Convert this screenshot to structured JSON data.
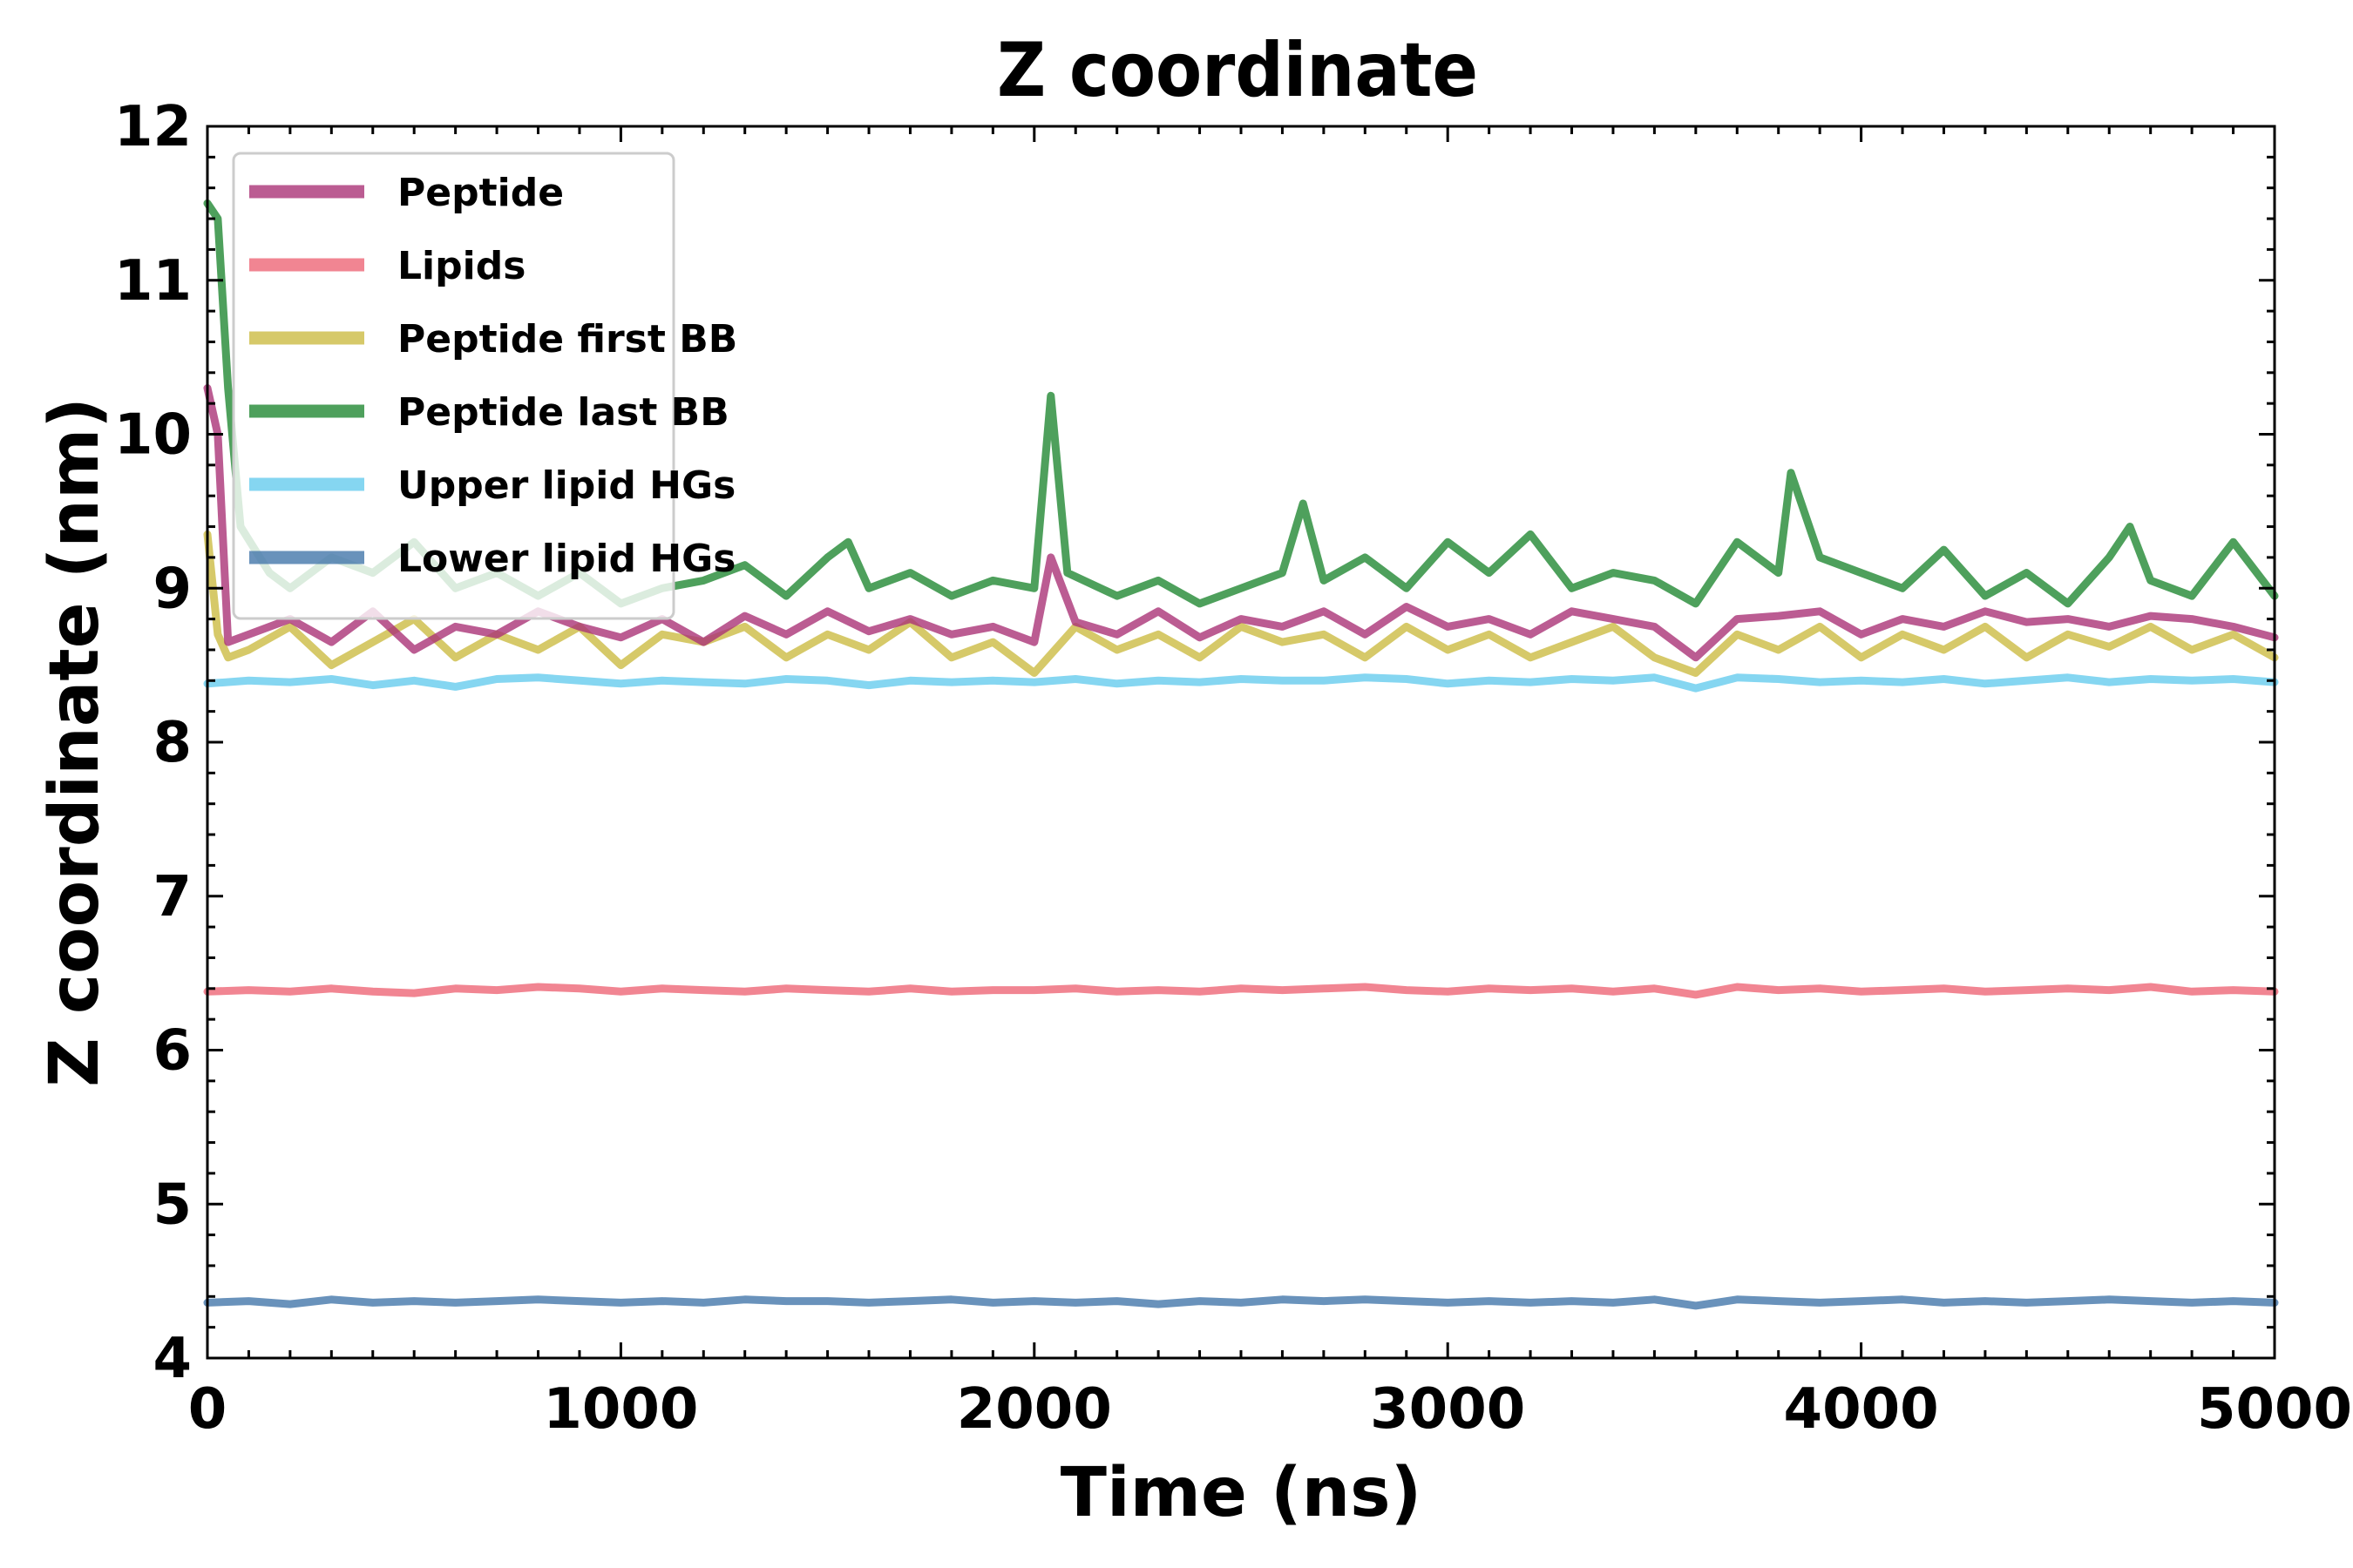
{
  "chart_data": {
    "type": "line",
    "title": "Z coordinate",
    "xlabel": "Time (ns)",
    "ylabel": "Z coordinate (nm)",
    "xlim": [
      0,
      5000
    ],
    "ylim": [
      4,
      12
    ],
    "xticks": [
      0,
      1000,
      2000,
      3000,
      4000,
      5000
    ],
    "yticks": [
      4,
      5,
      6,
      7,
      8,
      9,
      10,
      11,
      12
    ],
    "xtick_labels": [
      "0",
      "1000",
      "2000",
      "3000",
      "4000",
      "5000"
    ],
    "ytick_labels": [
      "4",
      "5",
      "6",
      "7",
      "8",
      "9",
      "10",
      "11",
      "12"
    ],
    "grid": false,
    "legend_position": "top-left",
    "series": [
      {
        "name": "Lower lipid HGs",
        "color": "#4477aa",
        "x": [
          0,
          100,
          200,
          300,
          400,
          500,
          600,
          700,
          800,
          900,
          1000,
          1100,
          1200,
          1300,
          1400,
          1500,
          1600,
          1700,
          1800,
          1900,
          2000,
          2100,
          2200,
          2300,
          2400,
          2500,
          2600,
          2700,
          2800,
          2900,
          3000,
          3100,
          3200,
          3300,
          3400,
          3500,
          3600,
          3700,
          3800,
          3900,
          4000,
          4100,
          4200,
          4300,
          4400,
          4500,
          4600,
          4700,
          4800,
          4900,
          5000
        ],
        "y": [
          4.36,
          4.37,
          4.35,
          4.38,
          4.36,
          4.37,
          4.36,
          4.37,
          4.38,
          4.37,
          4.36,
          4.37,
          4.36,
          4.38,
          4.37,
          4.37,
          4.36,
          4.37,
          4.38,
          4.36,
          4.37,
          4.36,
          4.37,
          4.35,
          4.37,
          4.36,
          4.38,
          4.37,
          4.38,
          4.37,
          4.36,
          4.37,
          4.36,
          4.37,
          4.36,
          4.38,
          4.34,
          4.38,
          4.37,
          4.36,
          4.37,
          4.38,
          4.36,
          4.37,
          4.36,
          4.37,
          4.38,
          4.37,
          4.36,
          4.37,
          4.36
        ]
      },
      {
        "name": "Lipids",
        "color": "#ee6677",
        "x": [
          0,
          100,
          200,
          300,
          400,
          500,
          600,
          700,
          800,
          900,
          1000,
          1100,
          1200,
          1300,
          1400,
          1500,
          1600,
          1700,
          1800,
          1900,
          2000,
          2100,
          2200,
          2300,
          2400,
          2500,
          2600,
          2700,
          2800,
          2900,
          3000,
          3100,
          3200,
          3300,
          3400,
          3500,
          3600,
          3700,
          3800,
          3900,
          4000,
          4100,
          4200,
          4300,
          4400,
          4500,
          4600,
          4700,
          4800,
          4900,
          5000
        ],
        "y": [
          6.38,
          6.39,
          6.38,
          6.4,
          6.38,
          6.37,
          6.4,
          6.39,
          6.41,
          6.4,
          6.38,
          6.4,
          6.39,
          6.38,
          6.4,
          6.39,
          6.38,
          6.4,
          6.38,
          6.39,
          6.39,
          6.4,
          6.38,
          6.39,
          6.38,
          6.4,
          6.39,
          6.4,
          6.41,
          6.39,
          6.38,
          6.4,
          6.39,
          6.4,
          6.38,
          6.4,
          6.36,
          6.41,
          6.39,
          6.4,
          6.38,
          6.39,
          6.4,
          6.38,
          6.39,
          6.4,
          6.39,
          6.41,
          6.38,
          6.39,
          6.38
        ]
      },
      {
        "name": "Upper lipid HGs",
        "color": "#66ccee",
        "x": [
          0,
          100,
          200,
          300,
          400,
          500,
          600,
          700,
          800,
          900,
          1000,
          1100,
          1200,
          1300,
          1400,
          1500,
          1600,
          1700,
          1800,
          1900,
          2000,
          2100,
          2200,
          2300,
          2400,
          2500,
          2600,
          2700,
          2800,
          2900,
          3000,
          3100,
          3200,
          3300,
          3400,
          3500,
          3600,
          3700,
          3800,
          3900,
          4000,
          4100,
          4200,
          4300,
          4400,
          4500,
          4600,
          4700,
          4800,
          4900,
          5000
        ],
        "y": [
          8.38,
          8.4,
          8.39,
          8.41,
          8.37,
          8.4,
          8.36,
          8.41,
          8.42,
          8.4,
          8.38,
          8.4,
          8.39,
          8.38,
          8.41,
          8.4,
          8.37,
          8.4,
          8.39,
          8.4,
          8.39,
          8.41,
          8.38,
          8.4,
          8.39,
          8.41,
          8.4,
          8.4,
          8.42,
          8.41,
          8.38,
          8.4,
          8.39,
          8.41,
          8.4,
          8.42,
          8.35,
          8.42,
          8.41,
          8.39,
          8.4,
          8.39,
          8.41,
          8.38,
          8.4,
          8.42,
          8.39,
          8.41,
          8.4,
          8.41,
          8.39
        ]
      },
      {
        "name": "Peptide first BB",
        "color": "#ccbb44",
        "x": [
          0,
          25,
          50,
          100,
          200,
          300,
          400,
          500,
          600,
          700,
          800,
          900,
          1000,
          1100,
          1200,
          1300,
          1400,
          1500,
          1600,
          1700,
          1800,
          1900,
          2000,
          2100,
          2200,
          2300,
          2400,
          2500,
          2600,
          2700,
          2800,
          2900,
          3000,
          3100,
          3200,
          3300,
          3400,
          3500,
          3600,
          3700,
          3800,
          3900,
          4000,
          4100,
          4200,
          4300,
          4400,
          4500,
          4600,
          4700,
          4800,
          4900,
          5000
        ],
        "y": [
          9.35,
          8.7,
          8.55,
          8.6,
          8.75,
          8.5,
          8.65,
          8.8,
          8.55,
          8.7,
          8.6,
          8.75,
          8.5,
          8.7,
          8.65,
          8.75,
          8.55,
          8.7,
          8.6,
          8.78,
          8.55,
          8.65,
          8.45,
          8.75,
          8.6,
          8.7,
          8.55,
          8.75,
          8.65,
          8.7,
          8.55,
          8.75,
          8.6,
          8.7,
          8.55,
          8.65,
          8.75,
          8.55,
          8.45,
          8.7,
          8.6,
          8.75,
          8.55,
          8.7,
          8.6,
          8.75,
          8.55,
          8.7,
          8.62,
          8.75,
          8.6,
          8.7,
          8.55
        ]
      },
      {
        "name": "Peptide",
        "color": "#aa3377",
        "x": [
          0,
          25,
          50,
          100,
          200,
          300,
          400,
          500,
          600,
          700,
          800,
          900,
          1000,
          1100,
          1200,
          1300,
          1400,
          1500,
          1600,
          1700,
          1800,
          1900,
          2000,
          2040,
          2100,
          2200,
          2300,
          2400,
          2500,
          2600,
          2700,
          2800,
          2900,
          3000,
          3100,
          3200,
          3300,
          3400,
          3500,
          3600,
          3700,
          3800,
          3900,
          4000,
          4100,
          4200,
          4300,
          4400,
          4500,
          4600,
          4700,
          4800,
          4900,
          5000
        ],
        "y": [
          10.3,
          10.0,
          8.65,
          8.7,
          8.8,
          8.65,
          8.85,
          8.6,
          8.75,
          8.7,
          8.85,
          8.75,
          8.68,
          8.8,
          8.65,
          8.82,
          8.7,
          8.85,
          8.72,
          8.8,
          8.7,
          8.75,
          8.65,
          9.2,
          8.78,
          8.7,
          8.85,
          8.68,
          8.8,
          8.75,
          8.85,
          8.7,
          8.88,
          8.75,
          8.8,
          8.7,
          8.85,
          8.8,
          8.75,
          8.55,
          8.8,
          8.82,
          8.85,
          8.7,
          8.8,
          8.75,
          8.85,
          8.78,
          8.8,
          8.75,
          8.82,
          8.8,
          8.75,
          8.68
        ]
      },
      {
        "name": "Peptide last BB",
        "color": "#228833",
        "x": [
          0,
          25,
          50,
          80,
          150,
          200,
          300,
          400,
          500,
          600,
          700,
          800,
          900,
          1000,
          1100,
          1200,
          1300,
          1400,
          1500,
          1550,
          1600,
          1700,
          1800,
          1900,
          2000,
          2040,
          2080,
          2200,
          2300,
          2400,
          2500,
          2600,
          2650,
          2700,
          2800,
          2900,
          3000,
          3100,
          3200,
          3300,
          3400,
          3500,
          3600,
          3700,
          3800,
          3830,
          3900,
          4000,
          4100,
          4200,
          4300,
          4400,
          4500,
          4600,
          4650,
          4700,
          4800,
          4900,
          5000
        ],
        "y": [
          11.5,
          11.4,
          10.3,
          9.4,
          9.1,
          9.0,
          9.2,
          9.1,
          9.3,
          9.0,
          9.1,
          8.95,
          9.1,
          8.9,
          9.0,
          9.05,
          9.15,
          8.95,
          9.2,
          9.3,
          9.0,
          9.1,
          8.95,
          9.05,
          9.0,
          10.25,
          9.1,
          8.95,
          9.05,
          8.9,
          9.0,
          9.1,
          9.55,
          9.05,
          9.2,
          9.0,
          9.3,
          9.1,
          9.35,
          9.0,
          9.1,
          9.05,
          8.9,
          9.3,
          9.1,
          9.75,
          9.2,
          9.1,
          9.0,
          9.25,
          8.95,
          9.1,
          8.9,
          9.2,
          9.4,
          9.05,
          8.95,
          9.3,
          8.95
        ]
      }
    ],
    "legend_order": [
      "Peptide",
      "Lipids",
      "Peptide first BB",
      "Peptide last BB",
      "Upper lipid HGs",
      "Lower lipid HGs"
    ]
  }
}
